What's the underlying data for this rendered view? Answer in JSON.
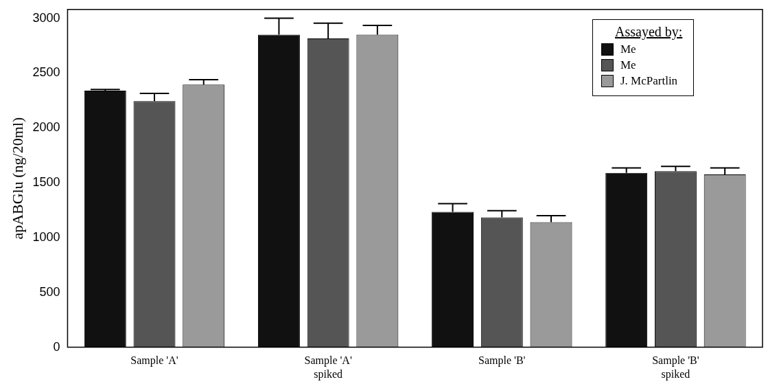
{
  "chart_data": {
    "type": "bar",
    "ylabel": "apABGlu (ng/20ml)",
    "legend_title": "Assayed by:",
    "categories": [
      "Sample 'A'",
      "Sample 'A'\nspiked",
      "Sample 'B'",
      "Sample 'B'\nspiked"
    ],
    "series": [
      {
        "name": "Me",
        "color": "#111111",
        "values": [
          2340,
          2850,
          1235,
          1590
        ],
        "errors": [
          [
            2340,
            2350
          ],
          [
            2850,
            3000
          ],
          [
            1235,
            1310
          ],
          [
            1590,
            1635
          ]
        ]
      },
      {
        "name": "Me",
        "color": "#555555",
        "values": [
          2245,
          2815,
          1185,
          1605
        ],
        "errors": [
          [
            2245,
            2315
          ],
          [
            2815,
            2955
          ],
          [
            1185,
            1245
          ],
          [
            1605,
            1650
          ]
        ]
      },
      {
        "name": "J. McPartlin",
        "color": "#9a9a9a",
        "values": [
          2395,
          2850,
          1140,
          1575
        ],
        "errors": [
          [
            2395,
            2440
          ],
          [
            2850,
            2935
          ],
          [
            1140,
            1200
          ],
          [
            1575,
            1635
          ]
        ]
      }
    ],
    "ylim": [
      0,
      3080
    ],
    "yticks": [
      0,
      500,
      1000,
      1500,
      2000,
      2500,
      3000
    ],
    "grid": false,
    "legend": "top right"
  }
}
